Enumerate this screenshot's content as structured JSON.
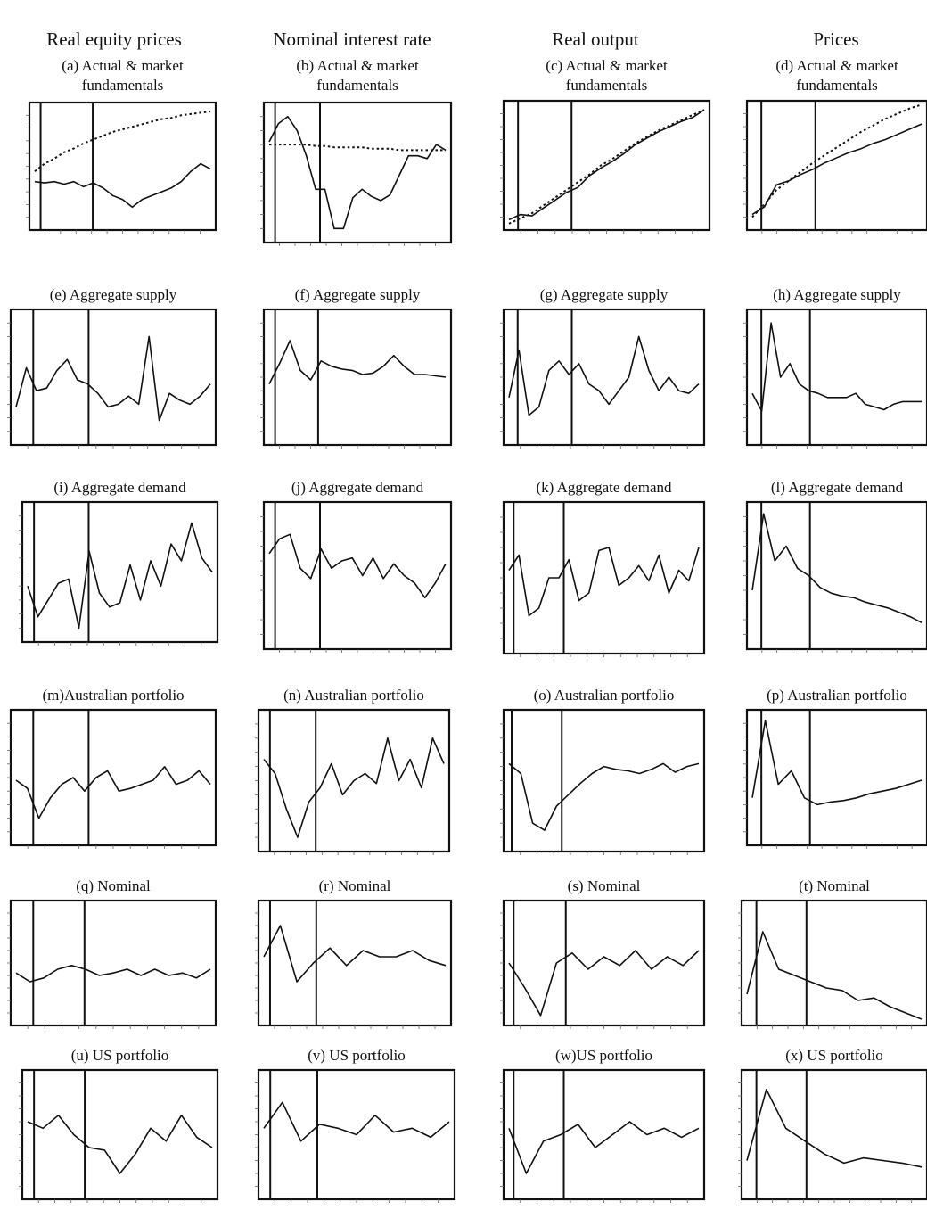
{
  "columns": [
    {
      "title": "Real equity prices"
    },
    {
      "title": "Nominal interest rate"
    },
    {
      "title": "Real output"
    },
    {
      "title": "Prices"
    }
  ],
  "chart_data": [
    {
      "type": "line",
      "title": [
        "(a) Actual & market",
        "fundamentals"
      ],
      "row": 0,
      "col": 0,
      "frame": [
        33,
        115,
        242,
        258
      ],
      "vlines": [
        0.06,
        0.34
      ],
      "series": [
        {
          "name": "",
          "style": "solid",
          "values": [
            0.38,
            0.37,
            0.38,
            0.36,
            0.38,
            0.34,
            0.37,
            0.33,
            0.27,
            0.24,
            0.18,
            0.24,
            0.27,
            0.3,
            0.33,
            0.38,
            0.46,
            0.52,
            0.48
          ]
        },
        {
          "name": "",
          "style": "dotted",
          "values": [
            0.46,
            0.52,
            0.56,
            0.61,
            0.64,
            0.68,
            0.71,
            0.74,
            0.77,
            0.79,
            0.81,
            0.83,
            0.85,
            0.87,
            0.88,
            0.9,
            0.91,
            0.92,
            0.93
          ]
        }
      ]
    },
    {
      "type": "line",
      "title": [
        "(b) Actual & market",
        "fundamentals"
      ],
      "row": 0,
      "col": 1,
      "frame": [
        296,
        115,
        506,
        272
      ],
      "vlines": [
        0.06,
        0.3
      ],
      "series": [
        {
          "name": "",
          "style": "solid",
          "values": [
            0.72,
            0.85,
            0.9,
            0.8,
            0.62,
            0.38,
            0.38,
            0.1,
            0.1,
            0.32,
            0.38,
            0.33,
            0.3,
            0.34,
            0.48,
            0.62,
            0.62,
            0.6,
            0.7,
            0.66
          ]
        },
        {
          "name": "",
          "style": "dotted",
          "values": [
            0.7,
            0.7,
            0.7,
            0.7,
            0.7,
            0.69,
            0.69,
            0.68,
            0.68,
            0.68,
            0.68,
            0.67,
            0.67,
            0.67,
            0.66,
            0.66,
            0.66,
            0.66,
            0.66,
            0.66
          ]
        }
      ]
    },
    {
      "type": "line",
      "title": [
        "(c) Actual & market",
        "fundamentals"
      ],
      "row": 0,
      "col": 2,
      "frame": [
        565,
        113,
        796,
        258
      ],
      "vlines": [
        0.07,
        0.33
      ],
      "series": [
        {
          "name": "",
          "style": "solid",
          "values": [
            0.08,
            0.12,
            0.11,
            0.17,
            0.23,
            0.29,
            0.33,
            0.42,
            0.48,
            0.53,
            0.59,
            0.66,
            0.71,
            0.76,
            0.8,
            0.84,
            0.87,
            0.93
          ]
        },
        {
          "name": "",
          "style": "dotted",
          "values": [
            0.05,
            0.09,
            0.13,
            0.19,
            0.25,
            0.31,
            0.37,
            0.43,
            0.5,
            0.55,
            0.61,
            0.67,
            0.72,
            0.77,
            0.81,
            0.85,
            0.89,
            0.93
          ]
        }
      ]
    },
    {
      "type": "line",
      "title": [
        "(d) Actual & market",
        "fundamentals"
      ],
      "row": 0,
      "col": 3,
      "frame": [
        838,
        113,
        1040,
        258
      ],
      "vlines": [
        0.08,
        0.38
      ],
      "series": [
        {
          "name": "",
          "style": "solid",
          "values": [
            0.12,
            0.18,
            0.35,
            0.38,
            0.43,
            0.47,
            0.52,
            0.56,
            0.6,
            0.63,
            0.67,
            0.7,
            0.74,
            0.78,
            0.82
          ]
        },
        {
          "name": "",
          "style": "dotted",
          "values": [
            0.1,
            0.2,
            0.31,
            0.38,
            0.45,
            0.52,
            0.58,
            0.64,
            0.7,
            0.76,
            0.81,
            0.86,
            0.9,
            0.94,
            0.97
          ]
        }
      ]
    },
    {
      "type": "line",
      "title": [
        "(e) Aggregate supply"
      ],
      "row": 1,
      "col": 0,
      "frame": [
        12,
        347,
        242,
        499
      ],
      "vlines": [
        0.11,
        0.38
      ],
      "series": [
        {
          "name": "",
          "style": "solid",
          "values": [
            0.28,
            0.57,
            0.4,
            0.42,
            0.55,
            0.63,
            0.48,
            0.45,
            0.38,
            0.28,
            0.3,
            0.36,
            0.3,
            0.8,
            0.18,
            0.38,
            0.33,
            0.3,
            0.36,
            0.45
          ]
        }
      ]
    },
    {
      "type": "line",
      "title": [
        "(f)  Aggregate supply"
      ],
      "row": 1,
      "col": 1,
      "frame": [
        296,
        347,
        506,
        499
      ],
      "vlines": [
        0.06,
        0.29
      ],
      "series": [
        {
          "name": "",
          "style": "solid",
          "values": [
            0.45,
            0.6,
            0.77,
            0.55,
            0.48,
            0.62,
            0.58,
            0.56,
            0.55,
            0.52,
            0.53,
            0.58,
            0.66,
            0.58,
            0.52,
            0.52,
            0.51,
            0.5
          ]
        }
      ]
    },
    {
      "type": "line",
      "title": [
        "(g) Aggregate supply"
      ],
      "row": 1,
      "col": 2,
      "frame": [
        565,
        347,
        790,
        499
      ],
      "vlines": [
        0.07,
        0.34
      ],
      "series": [
        {
          "name": "",
          "style": "solid",
          "values": [
            0.35,
            0.7,
            0.22,
            0.28,
            0.55,
            0.62,
            0.52,
            0.6,
            0.45,
            0.4,
            0.3,
            0.4,
            0.5,
            0.8,
            0.55,
            0.4,
            0.5,
            0.4,
            0.38,
            0.45
          ]
        }
      ]
    },
    {
      "type": "line",
      "title": [
        "(h) Aggregate supply"
      ],
      "row": 1,
      "col": 3,
      "frame": [
        838,
        347,
        1040,
        499
      ],
      "vlines": [
        0.08,
        0.35
      ],
      "series": [
        {
          "name": "",
          "style": "solid",
          "values": [
            0.38,
            0.25,
            0.9,
            0.5,
            0.6,
            0.45,
            0.4,
            0.38,
            0.35,
            0.35,
            0.35,
            0.38,
            0.3,
            0.28,
            0.26,
            0.3,
            0.32,
            0.32,
            0.32
          ]
        }
      ]
    },
    {
      "type": "line",
      "title": [
        "(i)  Aggregate demand"
      ],
      "row": 2,
      "col": 0,
      "frame": [
        25,
        563,
        244,
        720
      ],
      "vlines": [
        0.06,
        0.34
      ],
      "series": [
        {
          "name": "",
          "style": "solid",
          "values": [
            0.4,
            0.18,
            0.3,
            0.42,
            0.45,
            0.1,
            0.65,
            0.35,
            0.25,
            0.28,
            0.55,
            0.3,
            0.58,
            0.4,
            0.7,
            0.58,
            0.85,
            0.6,
            0.5
          ]
        }
      ]
    },
    {
      "type": "line",
      "title": [
        "(j)  Aggregate demand"
      ],
      "row": 2,
      "col": 1,
      "frame": [
        296,
        563,
        506,
        728
      ],
      "vlines": [
        0.06,
        0.3
      ],
      "series": [
        {
          "name": "",
          "style": "solid",
          "values": [
            0.65,
            0.75,
            0.78,
            0.55,
            0.48,
            0.68,
            0.55,
            0.6,
            0.62,
            0.5,
            0.62,
            0.48,
            0.58,
            0.5,
            0.45,
            0.35,
            0.45,
            0.58
          ]
        }
      ]
    },
    {
      "type": "line",
      "title": [
        "(k) Aggregate demand"
      ],
      "row": 2,
      "col": 2,
      "frame": [
        565,
        563,
        790,
        733
      ],
      "vlines": [
        0.05,
        0.3
      ],
      "series": [
        {
          "name": "",
          "style": "solid",
          "values": [
            0.55,
            0.65,
            0.25,
            0.3,
            0.5,
            0.5,
            0.62,
            0.35,
            0.4,
            0.68,
            0.7,
            0.45,
            0.5,
            0.58,
            0.48,
            0.65,
            0.4,
            0.55,
            0.48,
            0.7
          ]
        }
      ]
    },
    {
      "type": "line",
      "title": [
        "(l)  Aggregate demand"
      ],
      "row": 2,
      "col": 3,
      "frame": [
        838,
        563,
        1040,
        728
      ],
      "vlines": [
        0.08,
        0.35
      ],
      "series": [
        {
          "name": "",
          "style": "solid",
          "values": [
            0.4,
            0.92,
            0.6,
            0.7,
            0.55,
            0.5,
            0.42,
            0.38,
            0.36,
            0.35,
            0.32,
            0.3,
            0.28,
            0.25,
            0.22,
            0.18
          ]
        }
      ]
    },
    {
      "type": "line",
      "title": [
        "(m)Australian portfolio"
      ],
      "row": 3,
      "col": 0,
      "frame": [
        12,
        796,
        242,
        948
      ],
      "vlines": [
        0.11,
        0.38
      ],
      "series": [
        {
          "name": "",
          "style": "solid",
          "values": [
            0.48,
            0.42,
            0.2,
            0.35,
            0.45,
            0.5,
            0.4,
            0.5,
            0.55,
            0.4,
            0.42,
            0.45,
            0.48,
            0.58,
            0.45,
            0.48,
            0.55,
            0.45
          ]
        }
      ]
    },
    {
      "type": "line",
      "title": [
        "(n) Australian portfolio"
      ],
      "row": 3,
      "col": 1,
      "frame": [
        290,
        796,
        504,
        955
      ],
      "vlines": [
        0.06,
        0.3
      ],
      "series": [
        {
          "name": "",
          "style": "solid",
          "values": [
            0.65,
            0.55,
            0.3,
            0.1,
            0.35,
            0.45,
            0.62,
            0.4,
            0.5,
            0.55,
            0.48,
            0.8,
            0.5,
            0.65,
            0.45,
            0.8,
            0.62
          ]
        }
      ]
    },
    {
      "type": "line",
      "title": [
        "(o) Australian portfolio"
      ],
      "row": 3,
      "col": 2,
      "frame": [
        565,
        796,
        790,
        955
      ],
      "vlines": [
        0.04,
        0.29
      ],
      "series": [
        {
          "name": "",
          "style": "solid",
          "values": [
            0.62,
            0.55,
            0.2,
            0.15,
            0.32,
            0.4,
            0.48,
            0.55,
            0.6,
            0.58,
            0.57,
            0.55,
            0.58,
            0.62,
            0.56,
            0.6,
            0.62
          ]
        }
      ]
    },
    {
      "type": "line",
      "title": [
        "(p) Australian portfolio"
      ],
      "row": 3,
      "col": 3,
      "frame": [
        838,
        796,
        1040,
        948
      ],
      "vlines": [
        0.08,
        0.35
      ],
      "series": [
        {
          "name": "",
          "style": "solid",
          "values": [
            0.35,
            0.92,
            0.45,
            0.55,
            0.35,
            0.3,
            0.32,
            0.33,
            0.35,
            0.38,
            0.4,
            0.42,
            0.45,
            0.48
          ]
        }
      ]
    },
    {
      "type": "line",
      "title": [
        "(q) Nominal"
      ],
      "row": 4,
      "col": 0,
      "frame": [
        12,
        1010,
        242,
        1150
      ],
      "vlines": [
        0.11,
        0.36
      ],
      "series": [
        {
          "name": "",
          "style": "solid",
          "values": [
            0.42,
            0.35,
            0.38,
            0.45,
            0.48,
            0.45,
            0.4,
            0.42,
            0.45,
            0.4,
            0.45,
            0.4,
            0.42,
            0.38,
            0.45
          ]
        }
      ]
    },
    {
      "type": "line",
      "title": [
        "(r)  Nominal"
      ],
      "row": 4,
      "col": 1,
      "frame": [
        290,
        1010,
        506,
        1150
      ],
      "vlines": [
        0.06,
        0.3
      ],
      "series": [
        {
          "name": "",
          "style": "solid",
          "values": [
            0.55,
            0.8,
            0.35,
            0.5,
            0.62,
            0.48,
            0.6,
            0.55,
            0.55,
            0.6,
            0.52,
            0.48
          ]
        }
      ]
    },
    {
      "type": "line",
      "title": [
        "(s)  Nominal"
      ],
      "row": 4,
      "col": 2,
      "frame": [
        565,
        1010,
        790,
        1150
      ],
      "vlines": [
        0.05,
        0.31
      ],
      "series": [
        {
          "name": "",
          "style": "solid",
          "values": [
            0.5,
            0.3,
            0.08,
            0.5,
            0.58,
            0.45,
            0.55,
            0.48,
            0.6,
            0.45,
            0.55,
            0.48,
            0.6
          ]
        }
      ]
    },
    {
      "type": "line",
      "title": [
        "(t)  Nominal"
      ],
      "row": 4,
      "col": 3,
      "frame": [
        832,
        1010,
        1040,
        1150
      ],
      "vlines": [
        0.08,
        0.35
      ],
      "series": [
        {
          "name": "",
          "style": "solid",
          "values": [
            0.25,
            0.75,
            0.45,
            0.4,
            0.35,
            0.3,
            0.28,
            0.2,
            0.22,
            0.15,
            0.1,
            0.05
          ]
        }
      ]
    },
    {
      "type": "line",
      "title": [
        "(u) US portfolio"
      ],
      "row": 5,
      "col": 0,
      "frame": [
        25,
        1200,
        244,
        1345
      ],
      "vlines": [
        0.06,
        0.32
      ],
      "series": [
        {
          "name": "",
          "style": "solid",
          "values": [
            0.6,
            0.55,
            0.65,
            0.5,
            0.4,
            0.38,
            0.2,
            0.35,
            0.55,
            0.45,
            0.65,
            0.48,
            0.4
          ]
        }
      ]
    },
    {
      "type": "line",
      "title": [
        "(v) US portfolio"
      ],
      "row": 5,
      "col": 1,
      "frame": [
        290,
        1200,
        510,
        1345
      ],
      "vlines": [
        0.06,
        0.3
      ],
      "series": [
        {
          "name": "",
          "style": "solid",
          "values": [
            0.55,
            0.75,
            0.45,
            0.58,
            0.55,
            0.5,
            0.65,
            0.52,
            0.55,
            0.48,
            0.6
          ]
        }
      ]
    },
    {
      "type": "line",
      "title": [
        "(w)US portfolio"
      ],
      "row": 5,
      "col": 2,
      "frame": [
        565,
        1200,
        790,
        1345
      ],
      "vlines": [
        0.05,
        0.3
      ],
      "series": [
        {
          "name": "",
          "style": "solid",
          "values": [
            0.55,
            0.2,
            0.45,
            0.5,
            0.58,
            0.4,
            0.5,
            0.6,
            0.5,
            0.55,
            0.48,
            0.55
          ]
        }
      ]
    },
    {
      "type": "line",
      "title": [
        "(x) US portfolio"
      ],
      "row": 5,
      "col": 3,
      "frame": [
        832,
        1200,
        1040,
        1345
      ],
      "vlines": [
        0.08,
        0.35
      ],
      "series": [
        {
          "name": "",
          "style": "solid",
          "values": [
            0.3,
            0.85,
            0.55,
            0.45,
            0.35,
            0.28,
            0.32,
            0.3,
            0.28,
            0.25
          ]
        }
      ]
    }
  ]
}
